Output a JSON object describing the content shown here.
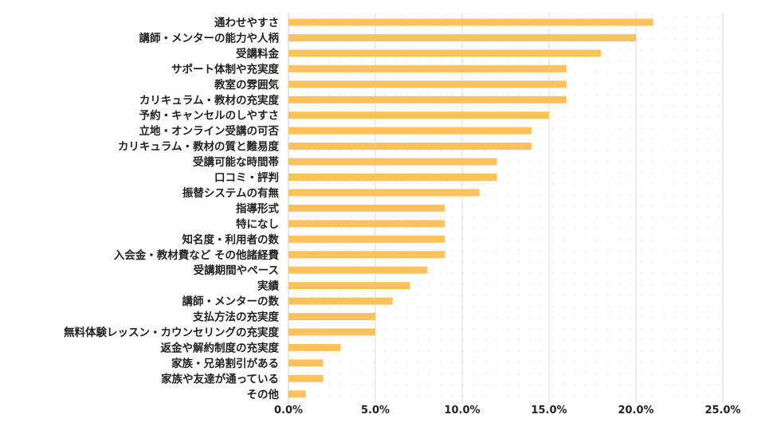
{
  "chart_data": {
    "type": "bar",
    "orientation": "horizontal",
    "bar_color": "#ffc15e",
    "grid": true,
    "xlim": [
      0,
      25
    ],
    "xtick_labels": [
      "0.0%",
      "5.0%",
      "10.0%",
      "15.0%",
      "20.0%",
      "25.0%"
    ],
    "categories": [
      "通わせやすさ",
      "講師・メンターの能力や人柄",
      "受講料金",
      "サポート体制や充実度",
      "教室の雰囲気",
      "カリキュラム・教材の充実度",
      "予約・キャンセルのしやすさ",
      "立地・オンライン受講の可否",
      "カリキュラム・教材の質と難易度",
      "受講可能な時間帯",
      "口コミ・評判",
      "振替システムの有無",
      "指導形式",
      "特になし",
      "知名度・利用者の数",
      "入会金・教材費など その他諸経費",
      "受講期間やペース",
      "実績",
      "講師・メンターの数",
      "支払方法の充実度",
      "無料体験レッスン・カウンセリングの充実度",
      "返金や解約制度の充実度",
      "家族・兄弟割引がある",
      "家族や友達が通っている",
      "その他"
    ],
    "values": [
      21,
      20,
      18,
      16,
      16,
      16,
      15,
      14,
      14,
      12,
      12,
      11,
      9,
      9,
      9,
      9,
      8,
      7,
      6,
      5,
      5,
      3,
      2,
      2,
      1
    ]
  }
}
